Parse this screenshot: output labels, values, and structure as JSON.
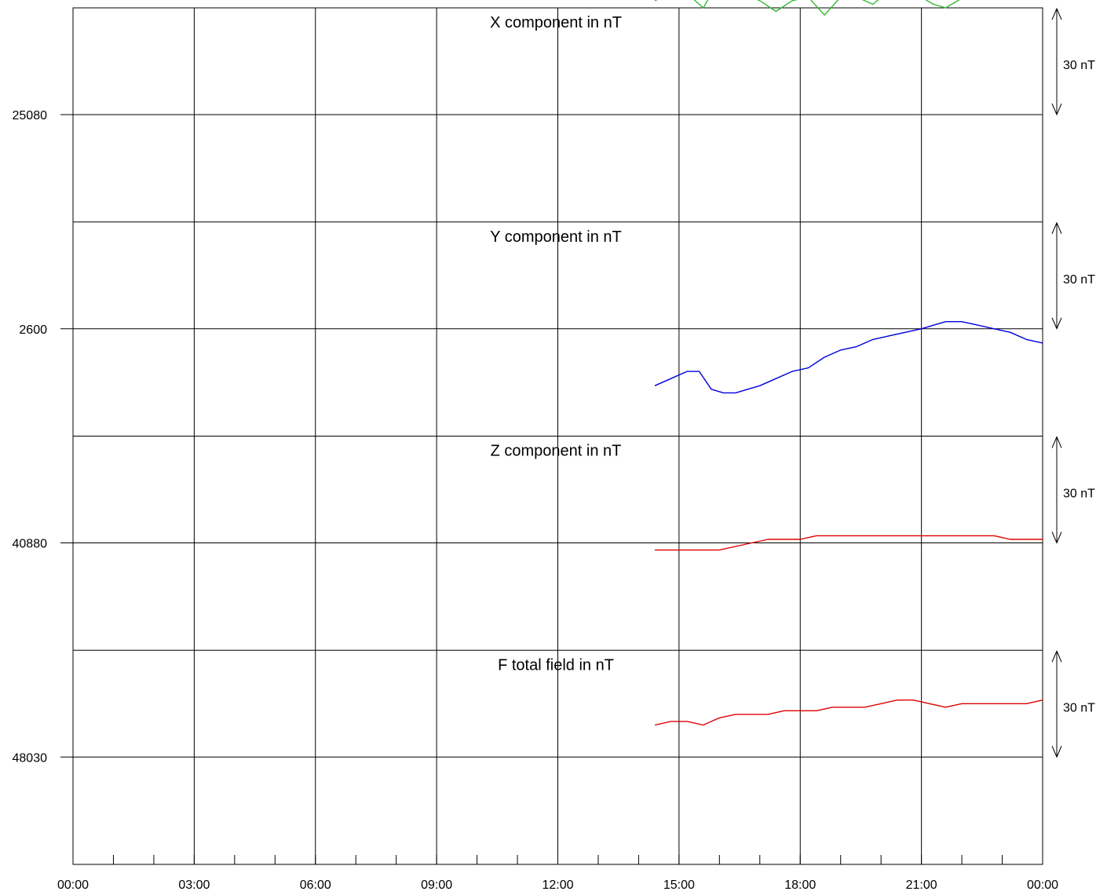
{
  "chart_data": {
    "type": "line",
    "x_axis": {
      "tick_labels": [
        "00:00",
        "03:00",
        "06:00",
        "09:00",
        "12:00",
        "15:00",
        "18:00",
        "21:00",
        "00:00"
      ],
      "range_hours": [
        0,
        24
      ],
      "minor_tick_step_hours": 1
    },
    "panels": [
      {
        "title": "X component in nT",
        "color": "#33bb33",
        "ref_label": "25080",
        "ref_value": 25080,
        "scale_label": "30 nT",
        "x": [
          14.4,
          14.8,
          15.2,
          15.6,
          15.9,
          16.2,
          16.6,
          17.0,
          17.4,
          17.8,
          18.2,
          18.6,
          19.0,
          19.4,
          19.8,
          20.2,
          20.6,
          21.0,
          21.3,
          21.6,
          21.9,
          22.2,
          22.6,
          23.0,
          23.4,
          23.8,
          24.0
        ],
        "values": [
          25112,
          25114,
          25114,
          25110,
          25116,
          25118,
          25114,
          25112,
          25109,
          25112,
          25113,
          25108,
          25113,
          25113,
          25111,
          25115,
          25117,
          25113,
          25111,
          25110,
          25112,
          25114,
          25118,
          25117,
          25118,
          25121,
          25121
        ]
      },
      {
        "title": "Y component in nT",
        "color": "#0000dd",
        "ref_label": "2600",
        "ref_value": 2600,
        "scale_label": "30 nT",
        "x": [
          14.4,
          14.8,
          15.2,
          15.5,
          15.8,
          16.1,
          16.4,
          16.7,
          17.0,
          17.4,
          17.8,
          18.2,
          18.6,
          19.0,
          19.4,
          19.8,
          20.2,
          20.6,
          21.0,
          21.3,
          21.6,
          22.0,
          22.4,
          22.8,
          23.2,
          23.6,
          24.0
        ],
        "values": [
          2584,
          2586,
          2588,
          2588,
          2583,
          2582,
          2582,
          2583,
          2584,
          2586,
          2588,
          2589,
          2592,
          2594,
          2595,
          2597,
          2598,
          2599,
          2600,
          2601,
          2602,
          2602,
          2601,
          2600,
          2599,
          2597,
          2596
        ]
      },
      {
        "title": "Z component in nT",
        "color": "#dd0000",
        "ref_label": "40880",
        "ref_value": 40880,
        "scale_label": "30 nT",
        "x": [
          14.4,
          14.8,
          15.2,
          15.6,
          16.0,
          16.4,
          16.8,
          17.2,
          17.6,
          18.0,
          18.4,
          18.8,
          19.2,
          19.6,
          20.0,
          20.4,
          20.8,
          21.2,
          21.6,
          22.0,
          22.4,
          22.8,
          23.2,
          23.6,
          24.0
        ],
        "values": [
          40878,
          40878,
          40878,
          40878,
          40878,
          40879,
          40880,
          40881,
          40881,
          40881,
          40882,
          40882,
          40882,
          40882,
          40882,
          40882,
          40882,
          40882,
          40882,
          40882,
          40882,
          40882,
          40881,
          40881,
          40881
        ]
      },
      {
        "title": "F total field in nT",
        "color": "#dd0000",
        "ref_label": "48030",
        "ref_value": 48030,
        "scale_label": "30 nT",
        "x": [
          14.4,
          14.8,
          15.2,
          15.6,
          16.0,
          16.4,
          16.8,
          17.2,
          17.6,
          18.0,
          18.4,
          18.8,
          19.2,
          19.6,
          20.0,
          20.4,
          20.8,
          21.2,
          21.6,
          22.0,
          22.4,
          22.8,
          23.2,
          23.6,
          24.0
        ],
        "values": [
          48039,
          48040,
          48040,
          48039,
          48041,
          48042,
          48042,
          48042,
          48043,
          48043,
          48043,
          48044,
          48044,
          48044,
          48045,
          48046,
          48046,
          48045,
          48044,
          48045,
          48045,
          48045,
          48045,
          48045,
          48046
        ]
      }
    ]
  }
}
